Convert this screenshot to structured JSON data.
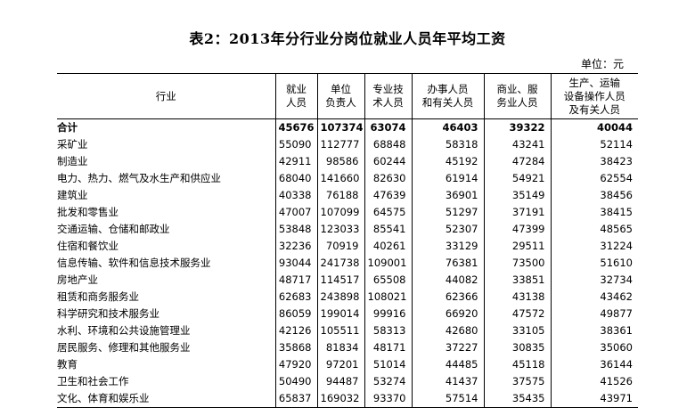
{
  "title": "表2：2013年分行业分岗位就业人员年平均工资",
  "unit": "单位：元",
  "columns": [
    {
      "lines": [
        "行业"
      ]
    },
    {
      "lines": [
        "就业",
        "人员"
      ]
    },
    {
      "lines": [
        "单位",
        "负责人"
      ]
    },
    {
      "lines": [
        "专业技",
        "术人员"
      ]
    },
    {
      "lines": [
        "办事人员",
        "和有关人员"
      ]
    },
    {
      "lines": [
        "商业、服",
        "务业人员"
      ]
    },
    {
      "lines": [
        "生产、运输",
        "设备操作人员",
        "及有关人员"
      ]
    }
  ],
  "rows": [
    {
      "cells": [
        "合计",
        "45676",
        "107374",
        "63074",
        "46403",
        "39322",
        "40044"
      ],
      "total": true
    },
    {
      "cells": [
        "采矿业",
        "55090",
        "112777",
        "68848",
        "58318",
        "43241",
        "52114"
      ]
    },
    {
      "cells": [
        "制造业",
        "42911",
        "98586",
        "60244",
        "45192",
        "47284",
        "38423"
      ]
    },
    {
      "cells": [
        "电力、热力、燃气及水生产和供应业",
        "68040",
        "141660",
        "82630",
        "61914",
        "54921",
        "62554"
      ]
    },
    {
      "cells": [
        "建筑业",
        "40338",
        "76188",
        "47639",
        "36901",
        "35149",
        "38456"
      ]
    },
    {
      "cells": [
        "批发和零售业",
        "47007",
        "107099",
        "64575",
        "51297",
        "37191",
        "38415"
      ]
    },
    {
      "cells": [
        "交通运输、仓储和邮政业",
        "53848",
        "123033",
        "85541",
        "52307",
        "47399",
        "48565"
      ]
    },
    {
      "cells": [
        "住宿和餐饮业",
        "32236",
        "70919",
        "40261",
        "33129",
        "29511",
        "31224"
      ]
    },
    {
      "cells": [
        "信息传输、软件和信息技术服务业",
        "93044",
        "241738",
        "109001",
        "76381",
        "73500",
        "51610"
      ]
    },
    {
      "cells": [
        "房地产业",
        "48717",
        "114517",
        "65508",
        "44082",
        "33851",
        "32734"
      ]
    },
    {
      "cells": [
        "租赁和商务服务业",
        "62683",
        "243898",
        "108021",
        "62366",
        "43138",
        "43462"
      ]
    },
    {
      "cells": [
        "科学研究和技术服务业",
        "86059",
        "199014",
        "99916",
        "66920",
        "47572",
        "49877"
      ]
    },
    {
      "cells": [
        "水利、环境和公共设施管理业",
        "42126",
        "105511",
        "58313",
        "42680",
        "33105",
        "38361"
      ]
    },
    {
      "cells": [
        "居民服务、修理和其他服务业",
        "35868",
        "81834",
        "48171",
        "37227",
        "30835",
        "35060"
      ]
    },
    {
      "cells": [
        "教育",
        "47920",
        "97201",
        "51014",
        "44485",
        "45118",
        "36144"
      ]
    },
    {
      "cells": [
        "卫生和社会工作",
        "50490",
        "94487",
        "53274",
        "41437",
        "37575",
        "41526"
      ]
    },
    {
      "cells": [
        "文化、体育和娱乐业",
        "65837",
        "169032",
        "93370",
        "57514",
        "35435",
        "43971"
      ]
    }
  ]
}
